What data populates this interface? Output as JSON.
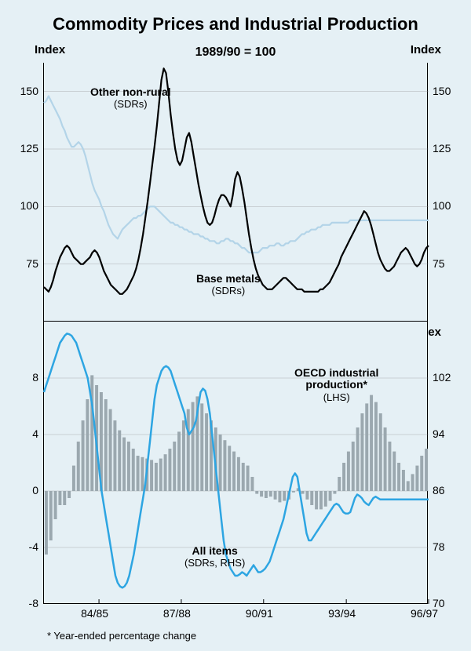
{
  "title": "Commodity Prices and Industrial Production",
  "subtitle": "1989/90 = 100",
  "footnote": "* Year-ended percentage change",
  "panels": {
    "top": {
      "left_label": "Index",
      "right_label": "Index",
      "ylim": [
        50,
        162.5
      ],
      "yticks": [
        75,
        100,
        125,
        150
      ],
      "series": {
        "other_non_rural": {
          "label_main": "Other non-rural",
          "label_sub": "(SDRs)",
          "label_pos": {
            "x": 60,
            "y": 30
          },
          "color": "#b3d4e8",
          "width": 2.2,
          "data": [
            145,
            146,
            148,
            146,
            144,
            142,
            140,
            138,
            135,
            133,
            130,
            128,
            126,
            126,
            127,
            128,
            127,
            125,
            122,
            118,
            114,
            110,
            107,
            105,
            103,
            100,
            98,
            95,
            92,
            90,
            88,
            87,
            86,
            88,
            90,
            91,
            92,
            93,
            94,
            95,
            95,
            96,
            96,
            97,
            98,
            99,
            100,
            100,
            100,
            99,
            98,
            97,
            96,
            95,
            94,
            93,
            93,
            92,
            92,
            91,
            91,
            90,
            90,
            89,
            89,
            88,
            88,
            88,
            87,
            87,
            86,
            86,
            85,
            85,
            85,
            84,
            84,
            85,
            85,
            86,
            86,
            85,
            85,
            84,
            84,
            83,
            82,
            82,
            81,
            80,
            80,
            80,
            80,
            80,
            81,
            82,
            82,
            82,
            83,
            83,
            83,
            84,
            84,
            83,
            83,
            84,
            84,
            85,
            85,
            85,
            86,
            87,
            88,
            88,
            89,
            89,
            90,
            90,
            90,
            91,
            91,
            92,
            92,
            92,
            92,
            93,
            93,
            93,
            93,
            93,
            93,
            93,
            93,
            94,
            94,
            94,
            94,
            94,
            94,
            94,
            94,
            94,
            94,
            94,
            94,
            94,
            94,
            94,
            94,
            94,
            94,
            94,
            94,
            94,
            94,
            94,
            94,
            94,
            94,
            94,
            94,
            94,
            94,
            94,
            94,
            94,
            94,
            94
          ]
        },
        "base_metals": {
          "label_main": "Base metals",
          "label_sub": "(SDRs)",
          "label_pos": {
            "x": 195,
            "y": 268
          },
          "color": "#000000",
          "width": 2.2,
          "data": [
            65,
            64,
            63,
            65,
            68,
            72,
            75,
            78,
            80,
            82,
            83,
            82,
            80,
            78,
            77,
            76,
            75,
            75,
            76,
            77,
            78,
            80,
            81,
            80,
            78,
            75,
            72,
            70,
            68,
            66,
            65,
            64,
            63,
            62,
            62,
            63,
            64,
            66,
            68,
            70,
            73,
            77,
            82,
            88,
            95,
            102,
            110,
            118,
            126,
            135,
            145,
            155,
            160,
            158,
            150,
            140,
            132,
            125,
            120,
            118,
            120,
            125,
            130,
            132,
            128,
            122,
            116,
            110,
            105,
            100,
            96,
            93,
            92,
            93,
            96,
            100,
            103,
            105,
            105,
            104,
            102,
            100,
            105,
            112,
            115,
            113,
            108,
            102,
            95,
            88,
            82,
            77,
            73,
            70,
            68,
            66,
            65,
            64,
            64,
            64,
            65,
            66,
            67,
            68,
            69,
            69,
            68,
            67,
            66,
            65,
            64,
            64,
            64,
            63,
            63,
            63,
            63,
            63,
            63,
            63,
            64,
            64,
            65,
            66,
            67,
            69,
            71,
            73,
            75,
            78,
            80,
            82,
            84,
            86,
            88,
            90,
            92,
            94,
            96,
            98,
            97,
            95,
            92,
            88,
            84,
            80,
            77,
            75,
            73,
            72,
            72,
            73,
            74,
            76,
            78,
            80,
            81,
            82,
            81,
            79,
            77,
            75,
            74,
            75,
            77,
            80,
            82,
            83
          ]
        }
      }
    },
    "bottom": {
      "left_label": "%",
      "right_label": "Index",
      "left_ylim": [
        -8,
        12
      ],
      "left_yticks": [
        -8,
        -4,
        0,
        4,
        8
      ],
      "right_ylim": [
        70,
        110
      ],
      "right_yticks": [
        70,
        78,
        86,
        94,
        102
      ],
      "x_labels": [
        "84/85",
        "87/88",
        "90/91",
        "93/94",
        "96/97"
      ],
      "x_positions": [
        0.143,
        0.357,
        0.571,
        0.786,
        1.0
      ],
      "bars": {
        "label_main": "OECD industrial",
        "label_mid": "production*",
        "label_sub": "(LHS)",
        "label_pos": {
          "x": 320,
          "y": 58
        },
        "color": "#9ba8af",
        "data": [
          -4.5,
          -3.5,
          -2.0,
          -1.0,
          -1.0,
          -0.5,
          1.8,
          3.5,
          5.0,
          6.5,
          8.2,
          7.5,
          7.0,
          6.5,
          5.8,
          5.0,
          4.3,
          3.8,
          3.5,
          3.0,
          2.5,
          2.4,
          2.3,
          2.2,
          2.0,
          2.3,
          2.6,
          3.0,
          3.5,
          4.2,
          5.0,
          5.8,
          6.3,
          6.7,
          6.2,
          5.5,
          5.0,
          4.5,
          4.0,
          3.6,
          3.2,
          2.8,
          2.4,
          2.0,
          1.8,
          1.0,
          -0.2,
          -0.4,
          -0.5,
          -0.4,
          -0.6,
          -0.8,
          -0.7,
          -0.6,
          -0.1,
          0.2,
          -0.2,
          -0.6,
          -1.0,
          -1.3,
          -1.3,
          -1.1,
          -0.7,
          -0.2,
          1.0,
          2.0,
          2.8,
          3.5,
          4.5,
          5.5,
          6.2,
          6.8,
          6.3,
          5.5,
          4.5,
          3.5,
          2.8,
          2.0,
          1.5,
          0.7,
          1.2,
          1.8,
          2.5,
          3.0
        ]
      },
      "line": {
        "label_main": "All items",
        "label_sub": "(SDRs, RHS)",
        "label_pos": {
          "x": 180,
          "y": 285
        },
        "color": "#2da5e2",
        "width": 2.5,
        "data": [
          100,
          101,
          102,
          103,
          104,
          105,
          106,
          107,
          107.5,
          108,
          108.3,
          108.2,
          108,
          107.5,
          107,
          106,
          105,
          104,
          103,
          102,
          100,
          98,
          95,
          92,
          89,
          86,
          84,
          82,
          80,
          78,
          76,
          74,
          73,
          72.5,
          72.3,
          72.5,
          73,
          74,
          75.5,
          77,
          79,
          81,
          83,
          85,
          87,
          90,
          93,
          96,
          99,
          101,
          102,
          103,
          103.5,
          103.7,
          103.5,
          103,
          102,
          101,
          100,
          99,
          98,
          97,
          95,
          94,
          94.5,
          95,
          96,
          98,
          100,
          100.5,
          100.2,
          99,
          97,
          94,
          91,
          88,
          85,
          82,
          79,
          77,
          76,
          75,
          74.5,
          74,
          74,
          74.2,
          74.5,
          74.3,
          74,
          74.5,
          75,
          75.5,
          75,
          74.5,
          74.5,
          74.7,
          75,
          75.5,
          76,
          77,
          78,
          79,
          80,
          81,
          82,
          83.5,
          85,
          86.5,
          88,
          88.5,
          88,
          86,
          84,
          82,
          80,
          79,
          79,
          79.5,
          80,
          80.5,
          81,
          81.5,
          82,
          82.5,
          83,
          83.5,
          84,
          84.2,
          84,
          83.5,
          83,
          82.8,
          82.8,
          83,
          84,
          85,
          85.5,
          85.3,
          85,
          84.5,
          84.2,
          84,
          84.5,
          85,
          85.2,
          85,
          84.8,
          84.8,
          84.8,
          84.8,
          84.8,
          84.8,
          84.8,
          84.8,
          84.8,
          84.8,
          84.8,
          84.8,
          84.8,
          84.8,
          84.8,
          84.8,
          84.8,
          84.8,
          84.8,
          84.8,
          84.8,
          84.8
        ]
      }
    }
  },
  "colors": {
    "background": "#e5f0f5",
    "grid": "#888888",
    "text": "#000000"
  }
}
